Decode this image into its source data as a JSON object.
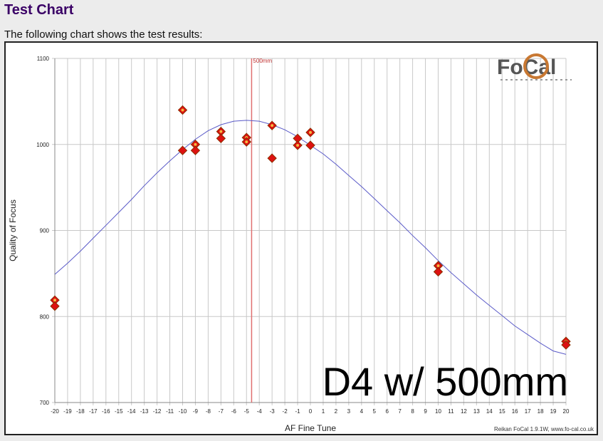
{
  "page": {
    "title": "Test Chart",
    "subtitle": "The following chart shows the test results:"
  },
  "colors": {
    "title": "#3a0066",
    "curve": "#5a5ac8",
    "marker_fill": "#dd1111",
    "marker_center": "#f5b840",
    "marker_edge": "#8a3000",
    "ref_line": "#e07070",
    "grid": "#c8c8c8"
  },
  "logo": {
    "text": "FoCal"
  },
  "overlay_text": "D4 w/ 500mm",
  "credit": "Reikan FoCal 1.9.1W, www.fo-cal.co.uk",
  "chart_data": {
    "type": "scatter",
    "xlabel": "AF Fine Tune",
    "ylabel": "Quality of Focus",
    "xlim": [
      -20,
      20
    ],
    "ylim": [
      700,
      1100
    ],
    "xticks": [
      -20,
      -19,
      -18,
      -17,
      -16,
      -15,
      -14,
      -13,
      -12,
      -11,
      -10,
      -9,
      -8,
      -7,
      -6,
      -5,
      -4,
      -3,
      -2,
      -1,
      0,
      1,
      2,
      3,
      4,
      5,
      6,
      7,
      8,
      9,
      10,
      11,
      12,
      13,
      14,
      15,
      16,
      17,
      18,
      19,
      20
    ],
    "yticks": [
      700,
      800,
      900,
      1000,
      1100
    ],
    "grid": true,
    "reference_line": {
      "x": -4.6,
      "label": "500mm"
    },
    "points": [
      {
        "x": -20,
        "y": 819,
        "marked": true
      },
      {
        "x": -20,
        "y": 812,
        "marked": false
      },
      {
        "x": -10,
        "y": 1040,
        "marked": true
      },
      {
        "x": -10,
        "y": 993,
        "marked": false
      },
      {
        "x": -9,
        "y": 1000,
        "marked": true
      },
      {
        "x": -9,
        "y": 993,
        "marked": false
      },
      {
        "x": -7,
        "y": 1015,
        "marked": true
      },
      {
        "x": -7,
        "y": 1007,
        "marked": false
      },
      {
        "x": -5,
        "y": 1008,
        "marked": true
      },
      {
        "x": -5,
        "y": 1003,
        "marked": true
      },
      {
        "x": -3,
        "y": 1022,
        "marked": true
      },
      {
        "x": -3,
        "y": 984,
        "marked": false
      },
      {
        "x": -1,
        "y": 1007,
        "marked": false
      },
      {
        "x": -1,
        "y": 999,
        "marked": true
      },
      {
        "x": 0,
        "y": 1014,
        "marked": true
      },
      {
        "x": 0,
        "y": 999,
        "marked": false
      },
      {
        "x": 10,
        "y": 859,
        "marked": true
      },
      {
        "x": 10,
        "y": 852,
        "marked": false
      },
      {
        "x": 20,
        "y": 771,
        "marked": true
      },
      {
        "x": 20,
        "y": 767,
        "marked": false
      }
    ],
    "fit_curve": {
      "x": [
        -20,
        -19,
        -18,
        -17,
        -16,
        -15,
        -14,
        -13,
        -12,
        -11,
        -10,
        -9,
        -8,
        -7,
        -6,
        -5,
        -4,
        -3,
        -2,
        -1,
        0,
        1,
        2,
        3,
        4,
        5,
        6,
        7,
        8,
        9,
        10,
        11,
        12,
        13,
        14,
        15,
        16,
        17,
        18,
        19,
        20
      ],
      "y": [
        849,
        862,
        876,
        891,
        906,
        921,
        936,
        952,
        967,
        981,
        994,
        1006,
        1016,
        1023,
        1027,
        1028,
        1027,
        1023,
        1017,
        1009,
        999,
        989,
        977,
        964,
        951,
        937,
        923,
        909,
        894,
        880,
        865,
        851,
        838,
        825,
        813,
        801,
        789,
        779,
        769,
        760,
        756
      ]
    }
  }
}
